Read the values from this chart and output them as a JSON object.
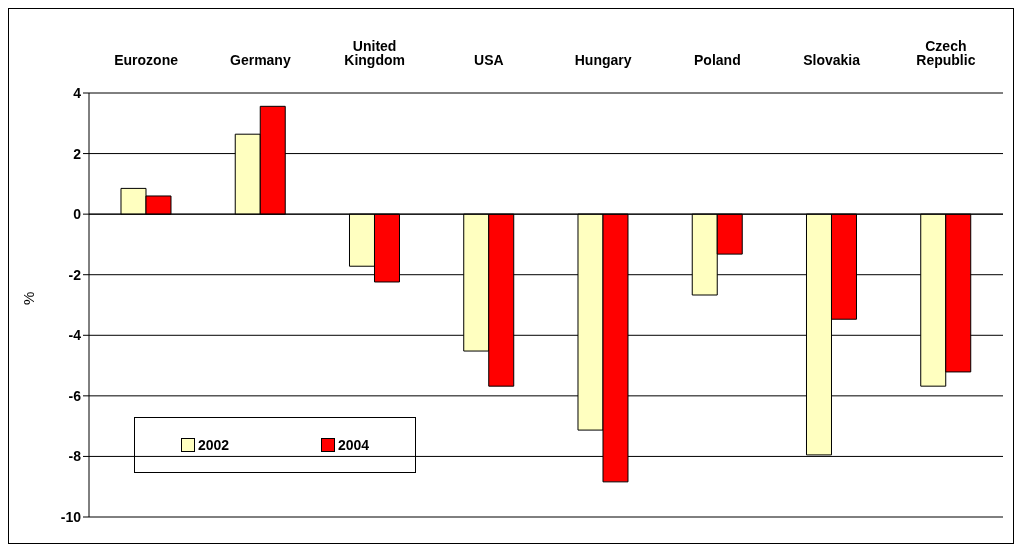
{
  "chart_data": {
    "type": "bar",
    "ylabel": "%",
    "categories": [
      "Eurozone",
      "Germany",
      "United Kingdom",
      "USA",
      "Hungary",
      "Poland",
      "Slovakia",
      "Czech Republic"
    ],
    "series": [
      {
        "name": "2002",
        "color": "#ffffc0",
        "values": [
          0.85,
          2.64,
          -1.72,
          -4.52,
          -7.13,
          -2.67,
          -7.95,
          -5.68
        ]
      },
      {
        "name": "2004",
        "color": "#ff0000",
        "values": [
          0.6,
          3.56,
          -2.24,
          -5.68,
          -8.84,
          -1.32,
          -3.47,
          -5.21
        ]
      }
    ],
    "ylim": [
      -10,
      4
    ],
    "yticks": [
      -10,
      -8,
      -6,
      -4,
      -2,
      0,
      2,
      4
    ],
    "grid": "y",
    "legend": "bottom left"
  }
}
